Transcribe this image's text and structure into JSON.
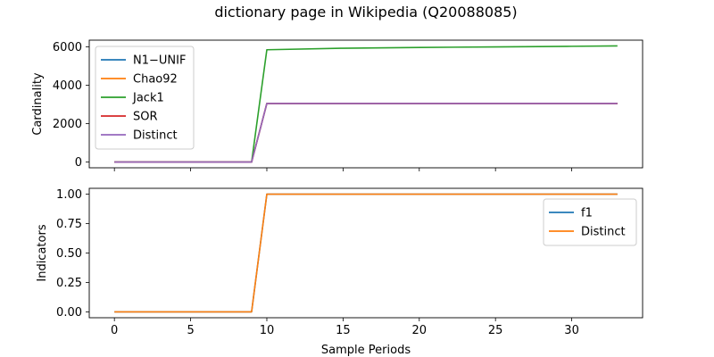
{
  "title": "dictionary page in Wikipedia (Q20088085)",
  "chart_data": [
    {
      "type": "line",
      "ylabel": "Cardinality",
      "xlabel": "",
      "xlim": [
        -1.65,
        34.65
      ],
      "ylim": [
        -300,
        6350
      ],
      "x_ticks": [
        0,
        5,
        10,
        15,
        20,
        25,
        30
      ],
      "y_ticks": [
        0,
        2000,
        4000,
        6000
      ],
      "legend": "top-left",
      "series": [
        {
          "name": "N1−UNIF",
          "color": "#1f77b4",
          "x": [
            0,
            9,
            10,
            33
          ],
          "y": [
            0,
            0,
            3050,
            3050
          ]
        },
        {
          "name": "Chao92",
          "color": "#ff7f0e",
          "x": [
            0,
            9,
            10,
            33
          ],
          "y": [
            0,
            0,
            3050,
            3050
          ]
        },
        {
          "name": "Jack1",
          "color": "#2ca02c",
          "x": [
            0,
            9,
            10,
            15,
            20,
            25,
            30,
            33
          ],
          "y": [
            0,
            0,
            5850,
            5930,
            5970,
            6000,
            6030,
            6050
          ]
        },
        {
          "name": "SOR",
          "color": "#d62728",
          "x": [
            0,
            9,
            10,
            33
          ],
          "y": [
            0,
            0,
            3050,
            3050
          ]
        },
        {
          "name": "Distinct",
          "color": "#9467bd",
          "x": [
            0,
            9,
            10,
            33
          ],
          "y": [
            0,
            0,
            3050,
            3050
          ]
        }
      ]
    },
    {
      "type": "line",
      "ylabel": "Indicators",
      "xlabel": "Sample Periods",
      "xlim": [
        -1.65,
        34.65
      ],
      "ylim": [
        -0.05,
        1.05
      ],
      "x_ticks": [
        0,
        5,
        10,
        15,
        20,
        25,
        30
      ],
      "y_ticks": [
        0.0,
        0.25,
        0.5,
        0.75,
        1.0
      ],
      "y_tick_labels": [
        "0.00",
        "0.25",
        "0.50",
        "0.75",
        "1.00"
      ],
      "legend": "right",
      "series": [
        {
          "name": "f1",
          "color": "#1f77b4",
          "x": [
            0,
            9,
            10,
            33
          ],
          "y": [
            0,
            0,
            1,
            1
          ]
        },
        {
          "name": "Distinct",
          "color": "#ff7f0e",
          "x": [
            0,
            9,
            10,
            33
          ],
          "y": [
            0,
            0,
            1,
            1
          ]
        }
      ]
    }
  ]
}
